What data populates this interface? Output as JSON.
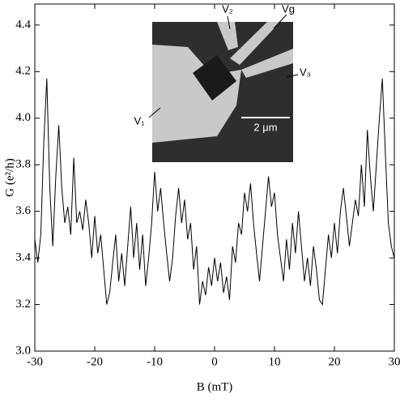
{
  "chart_data": {
    "type": "line",
    "xlabel": "B (mT)",
    "ylabel": "G (e²/h)",
    "annotations": [
      "V₂",
      "Vg",
      "V₃",
      "V₁",
      "2 μm"
    ],
    "x": [
      -30,
      -29.5,
      -29,
      -28.5,
      -28,
      -27.5,
      -27,
      -26.5,
      -26,
      -25.5,
      -25,
      -24.5,
      -24,
      -23.5,
      -23,
      -22.5,
      -22,
      -21.5,
      -21,
      -20.5,
      -20,
      -19.5,
      -19,
      -18.5,
      -18,
      -17.5,
      -17,
      -16.5,
      -16,
      -15.5,
      -15,
      -14.5,
      -14,
      -13.5,
      -13,
      -12.5,
      -12,
      -11.5,
      -11,
      -10.5,
      -10,
      -9.5,
      -9,
      -8.5,
      -8,
      -7.5,
      -7,
      -6.5,
      -6,
      -5.5,
      -5,
      -4.5,
      -4,
      -3.5,
      -3,
      -2.5,
      -2,
      -1.5,
      -1,
      -0.5,
      0,
      0.5,
      1,
      1.5,
      2,
      2.5,
      3,
      3.5,
      4,
      4.5,
      5,
      5.5,
      6,
      6.5,
      7,
      7.5,
      8,
      8.5,
      9,
      9.5,
      10,
      10.5,
      11,
      11.5,
      12,
      12.5,
      13,
      13.5,
      14,
      14.5,
      15,
      15.5,
      16,
      16.5,
      17,
      17.5,
      18,
      18.5,
      19,
      19.5,
      20,
      20.5,
      21,
      21.5,
      22,
      22.5,
      23,
      23.5,
      24,
      24.5,
      25,
      25.5,
      26,
      26.5,
      27,
      27.5,
      28,
      28.5,
      29,
      29.5,
      30
    ],
    "values": [
      3.48,
      3.38,
      3.5,
      3.9,
      4.17,
      3.7,
      3.45,
      3.75,
      3.97,
      3.7,
      3.55,
      3.62,
      3.5,
      3.83,
      3.55,
      3.6,
      3.52,
      3.65,
      3.55,
      3.4,
      3.58,
      3.42,
      3.5,
      3.35,
      3.2,
      3.25,
      3.38,
      3.5,
      3.3,
      3.42,
      3.28,
      3.45,
      3.62,
      3.4,
      3.55,
      3.35,
      3.5,
      3.28,
      3.4,
      3.55,
      3.77,
      3.6,
      3.7,
      3.55,
      3.42,
      3.3,
      3.4,
      3.58,
      3.7,
      3.55,
      3.65,
      3.48,
      3.55,
      3.35,
      3.45,
      3.2,
      3.3,
      3.24,
      3.36,
      3.28,
      3.4,
      3.3,
      3.38,
      3.25,
      3.32,
      3.22,
      3.45,
      3.38,
      3.55,
      3.5,
      3.68,
      3.6,
      3.72,
      3.55,
      3.42,
      3.3,
      3.45,
      3.6,
      3.75,
      3.62,
      3.68,
      3.5,
      3.4,
      3.3,
      3.48,
      3.35,
      3.55,
      3.42,
      3.6,
      3.45,
      3.3,
      3.4,
      3.28,
      3.45,
      3.35,
      3.22,
      3.2,
      3.35,
      3.5,
      3.4,
      3.55,
      3.42,
      3.6,
      3.7,
      3.58,
      3.45,
      3.55,
      3.65,
      3.58,
      3.8,
      3.62,
      3.95,
      3.75,
      3.6,
      3.8,
      4.0,
      4.17,
      3.85,
      3.55,
      3.45,
      3.4
    ],
    "color": "#000000",
    "xlim": [
      -30,
      30
    ],
    "xticks": [
      -30,
      -20,
      -10,
      0,
      10,
      20,
      30
    ],
    "ylim": [
      3.0,
      4.49
    ],
    "yticks": [
      {
        "value": 3,
        "label": "3.0"
      },
      3.2,
      3.4,
      3.6,
      3.8,
      {
        "value": 4,
        "label": "4.0"
      },
      4.2,
      4.4
    ],
    "grid": false
  }
}
